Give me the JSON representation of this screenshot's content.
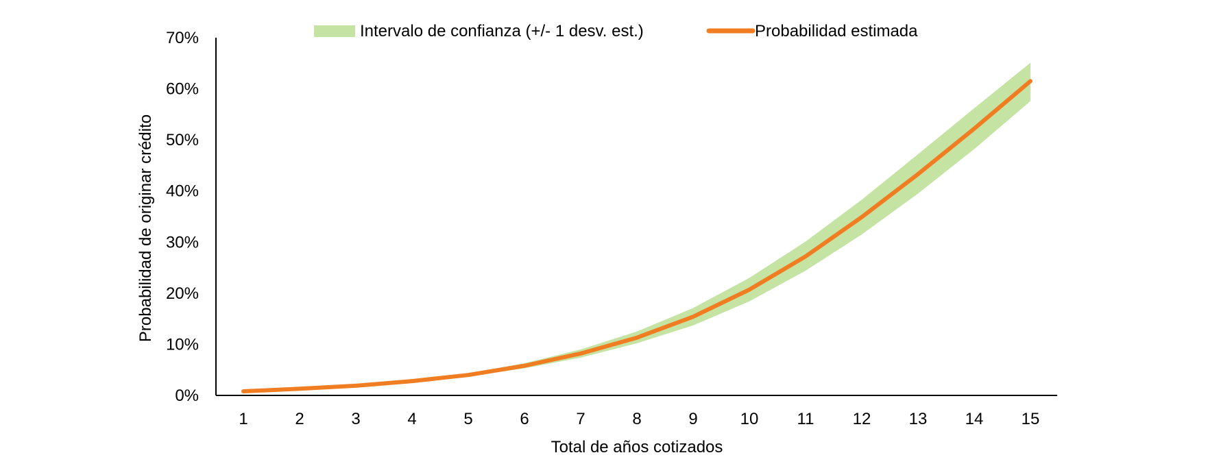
{
  "chart_data": {
    "type": "line",
    "title": "",
    "xlabel": "Total de años cotizados",
    "ylabel": "Probabilidad de originar crédito",
    "x": [
      1,
      2,
      3,
      4,
      5,
      6,
      7,
      8,
      9,
      10,
      11,
      12,
      13,
      14,
      15
    ],
    "ylim": [
      0,
      70
    ],
    "yticks": [
      "0%",
      "10%",
      "20%",
      "30%",
      "40%",
      "50%",
      "60%",
      "70%"
    ],
    "ytick_values": [
      0,
      10,
      20,
      30,
      40,
      50,
      60,
      70
    ],
    "grid": false,
    "legend_position": "top-center",
    "series": [
      {
        "name": "Probabilidad estimada",
        "kind": "line",
        "color": "#f07d22",
        "values": [
          0.8,
          1.3,
          1.9,
          2.8,
          4.0,
          5.8,
          8.2,
          11.3,
          15.4,
          20.7,
          27.2,
          34.9,
          43.3,
          52.2,
          61.5
        ]
      },
      {
        "name": "Intervalo de confianza (+/- 1 desv. est.)",
        "kind": "band",
        "color": "#c5e4a4",
        "lower": [
          0.7,
          1.2,
          1.8,
          2.6,
          3.7,
          5.3,
          7.4,
          10.2,
          13.7,
          18.4,
          24.4,
          31.5,
          39.5,
          48.2,
          57.6
        ],
        "upper": [
          0.9,
          1.4,
          2.0,
          3.0,
          4.3,
          6.3,
          9.0,
          12.5,
          17.1,
          23.0,
          30.1,
          38.3,
          47.2,
          56.2,
          65.1
        ]
      }
    ]
  }
}
